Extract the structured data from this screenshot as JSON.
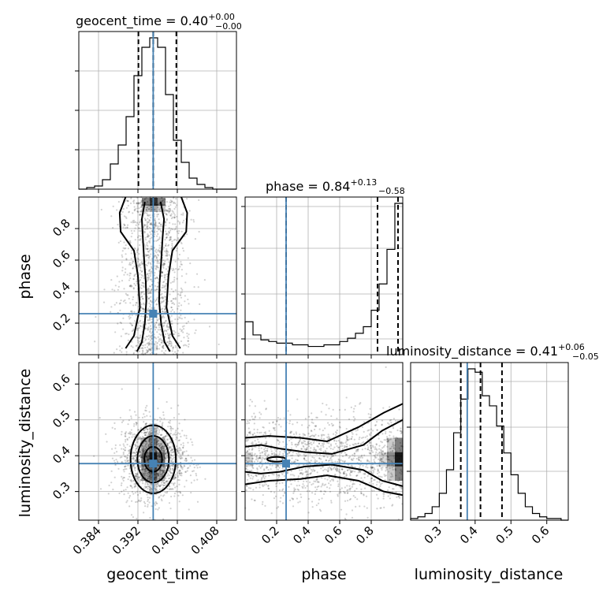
{
  "chart_data": {
    "type": "corner",
    "parameters": [
      "geocent_time",
      "phase",
      "luminosity_distance"
    ],
    "injection": {
      "geocent_time": 0.3951,
      "phase": 0.26,
      "luminosity_distance": 0.378
    },
    "colors": {
      "injection": "#4682b4",
      "line": "#000000",
      "grid": "#b0b0b0",
      "hist2d": "#000000"
    },
    "grid": true,
    "panels": {
      "geocent_time_hist": {
        "title": "geocent_time = 0.40",
        "title_sup": "+0.00",
        "title_sub": "−0.00",
        "quantiles": [
          0.3921,
          0.3951,
          0.3998
        ],
        "xlim": [
          0.38,
          0.412
        ],
        "bins": [
          0.38,
          0.3816,
          0.3832,
          0.3848,
          0.3864,
          0.388,
          0.3896,
          0.3912,
          0.3928,
          0.3944,
          0.396,
          0.3976,
          0.3992,
          0.4008,
          0.4024,
          0.404,
          0.4056,
          0.4072,
          0.4088,
          0.412
        ],
        "counts": [
          0,
          1,
          2,
          6,
          16,
          28,
          46,
          72,
          90,
          96,
          90,
          60,
          31,
          17,
          7,
          3,
          1,
          0,
          0
        ]
      },
      "phase_hist": {
        "title": "phase = 0.84",
        "title_sup": "+0.13",
        "title_sub": "−0.58",
        "quantiles": [
          0.26,
          0.84,
          0.97
        ],
        "xlim": [
          0.0,
          1.0
        ],
        "bins": [
          0.0,
          0.05,
          0.1,
          0.15,
          0.2,
          0.25,
          0.3,
          0.35,
          0.4,
          0.45,
          0.5,
          0.55,
          0.6,
          0.65,
          0.7,
          0.75,
          0.8,
          0.85,
          0.9,
          0.95,
          1.0
        ],
        "counts": [
          20,
          12,
          9,
          8,
          7,
          7,
          6,
          6,
          5,
          5,
          6,
          6,
          8,
          10,
          13,
          17,
          27,
          43,
          64,
          92
        ]
      },
      "luminosity_distance_hist": {
        "title": "luminosity_distance = 0.41",
        "title_sup": "+0.06",
        "title_sub": "−0.05",
        "quantiles": [
          0.36,
          0.415,
          0.475
        ],
        "xlim": [
          0.22,
          0.66
        ],
        "bins": [
          0.22,
          0.24,
          0.26,
          0.28,
          0.3,
          0.32,
          0.34,
          0.36,
          0.38,
          0.4,
          0.42,
          0.44,
          0.46,
          0.48,
          0.5,
          0.52,
          0.54,
          0.56,
          0.58,
          0.6,
          0.62,
          0.64,
          0.66
        ],
        "counts": [
          1,
          2,
          4,
          8,
          16,
          30,
          52,
          72,
          90,
          88,
          74,
          68,
          56,
          40,
          27,
          16,
          8,
          4,
          2,
          1,
          1,
          0
        ]
      },
      "phase_vs_geocent_time": {
        "xlim": [
          0.38,
          0.412
        ],
        "ylim": [
          0.0,
          1.0
        ],
        "yticks": [
          "0.2",
          "0.4",
          "0.6",
          "0.8"
        ],
        "contours": [
          [
            [
              0.3934,
              0.97
            ],
            [
              0.3928,
              0.86
            ],
            [
              0.393,
              0.74
            ],
            [
              0.3933,
              0.58
            ],
            [
              0.3936,
              0.46
            ],
            [
              0.3937,
              0.34
            ],
            [
              0.3934,
              0.2
            ],
            [
              0.3928,
              0.08
            ],
            [
              0.3918,
              0.02
            ]
          ],
          [
            [
              0.3966,
              0.97
            ],
            [
              0.3973,
              0.86
            ],
            [
              0.397,
              0.74
            ],
            [
              0.3967,
              0.58
            ],
            [
              0.3964,
              0.46
            ],
            [
              0.3963,
              0.34
            ],
            [
              0.3967,
              0.2
            ],
            [
              0.3974,
              0.08
            ],
            [
              0.3985,
              0.02
            ]
          ],
          [
            [
              0.3895,
              1.0
            ],
            [
              0.3883,
              0.9
            ],
            [
              0.3885,
              0.78
            ],
            [
              0.3912,
              0.66
            ],
            [
              0.392,
              0.5
            ],
            [
              0.3924,
              0.3
            ],
            [
              0.3912,
              0.12
            ],
            [
              0.3895,
              0.04
            ]
          ],
          [
            [
              0.4008,
              1.0
            ],
            [
              0.402,
              0.9
            ],
            [
              0.4018,
              0.78
            ],
            [
              0.399,
              0.66
            ],
            [
              0.3982,
              0.5
            ],
            [
              0.3978,
              0.3
            ],
            [
              0.399,
              0.12
            ],
            [
              0.4006,
              0.04
            ]
          ]
        ]
      },
      "luminosity_distance_vs_geocent_time": {
        "xlim": [
          0.38,
          0.412
        ],
        "ylim": [
          0.22,
          0.66
        ],
        "xticks": [
          "0.384",
          "0.392",
          "0.400",
          "0.408"
        ],
        "yticks": [
          "0.3",
          "0.4",
          "0.5",
          "0.6"
        ],
        "contour_levels": [
          [
            0.0018,
            0.035
          ],
          [
            0.0032,
            0.065
          ],
          [
            0.0046,
            0.095
          ]
        ],
        "center": [
          0.3951,
          0.39
        ]
      },
      "luminosity_distance_vs_phase": {
        "xlim": [
          0.0,
          1.0
        ],
        "ylim": [
          0.22,
          0.66
        ],
        "xticks": [
          "0.2",
          "0.4",
          "0.6",
          "0.8"
        ],
        "contours": [
          [
            [
              0.0,
              0.45
            ],
            [
              0.15,
              0.455
            ],
            [
              0.35,
              0.45
            ],
            [
              0.52,
              0.44
            ],
            [
              0.72,
              0.48
            ],
            [
              0.88,
              0.52
            ],
            [
              1.0,
              0.545
            ]
          ],
          [
            [
              0.0,
              0.32
            ],
            [
              0.15,
              0.33
            ],
            [
              0.35,
              0.335
            ],
            [
              0.52,
              0.345
            ],
            [
              0.72,
              0.33
            ],
            [
              0.88,
              0.3
            ],
            [
              1.0,
              0.29
            ]
          ],
          [
            [
              0.0,
              0.425
            ],
            [
              0.1,
              0.43
            ],
            [
              0.22,
              0.42
            ],
            [
              0.38,
              0.41
            ],
            [
              0.55,
              0.405
            ],
            [
              0.75,
              0.43
            ],
            [
              0.87,
              0.47
            ],
            [
              1.0,
              0.5
            ]
          ],
          [
            [
              0.0,
              0.355
            ],
            [
              0.1,
              0.35
            ],
            [
              0.22,
              0.355
            ],
            [
              0.38,
              0.37
            ],
            [
              0.55,
              0.375
            ],
            [
              0.75,
              0.36
            ],
            [
              0.87,
              0.33
            ],
            [
              1.0,
              0.315
            ]
          ]
        ]
      }
    },
    "axis_labels": {
      "x1": "geocent_time",
      "x2": "phase",
      "x3": "luminosity_distance",
      "y2": "phase",
      "y3": "luminosity_distance"
    },
    "tick_labels": {
      "geocent_time": [
        "0.384",
        "0.392",
        "0.400",
        "0.408"
      ],
      "phase": [
        "0.2",
        "0.4",
        "0.6",
        "0.8"
      ],
      "luminosity_distance": [
        "0.3",
        "0.4",
        "0.5",
        "0.6"
      ]
    }
  }
}
